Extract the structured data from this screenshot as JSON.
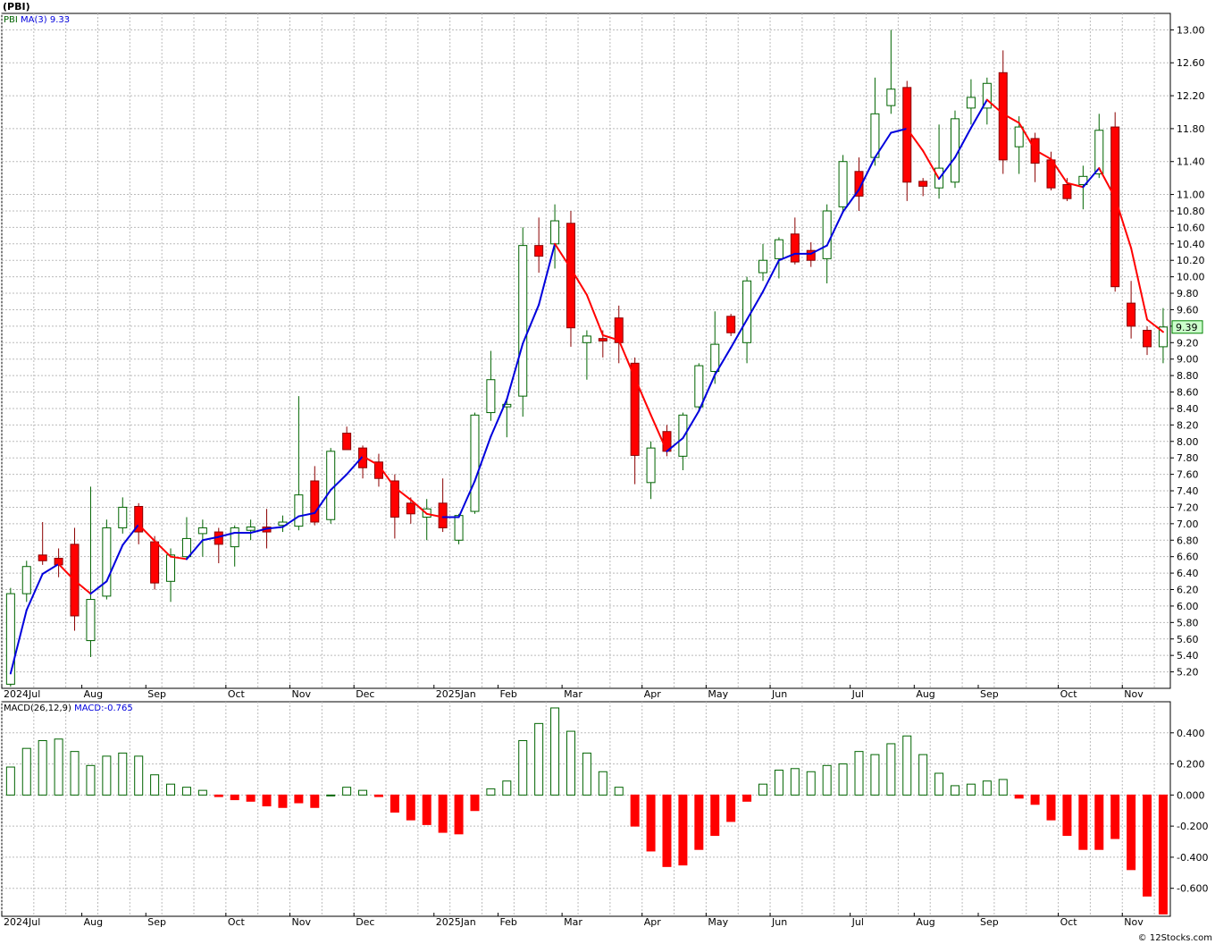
{
  "chart_title": "(PBI)",
  "watermark": "© 12Stocks.com",
  "colors": {
    "up_fill": "#ffffff",
    "up_stroke": "#006400",
    "down_fill": "#ff0000",
    "down_stroke": "#8b0000",
    "ma_up": "#0000dd",
    "ma_down": "#ff0000",
    "grid": "#bbbbbb",
    "last_price_box": "#ccffcc",
    "macd_pos_stroke": "#006400",
    "macd_neg_fill": "#ff0000",
    "ticker_label": "#006400",
    "ma_label": "#0000dd"
  },
  "chart_data": [
    {
      "type": "candlestick",
      "ticker": "PBI",
      "ma_label": "MA(3)",
      "ma_value": "9.33",
      "last_price_label": "9.39",
      "ylim": [
        5.0,
        13.2
      ],
      "y_ticks": [
        "5.20",
        "5.40",
        "5.60",
        "5.80",
        "6.00",
        "6.20",
        "6.40",
        "6.60",
        "6.80",
        "7.00",
        "7.20",
        "7.40",
        "7.60",
        "7.80",
        "8.00",
        "8.20",
        "8.40",
        "8.60",
        "8.80",
        "9.00",
        "9.20",
        "9.40",
        "9.60",
        "9.80",
        "10.00",
        "10.20",
        "10.40",
        "10.60",
        "10.80",
        "11.00",
        "11.40",
        "11.80",
        "12.20",
        "12.60",
        "13.00"
      ],
      "x_labels": [
        {
          "label": "2024Jul",
          "index": 0
        },
        {
          "label": "Aug",
          "index": 5
        },
        {
          "label": "Sep",
          "index": 9
        },
        {
          "label": "Oct",
          "index": 14
        },
        {
          "label": "Nov",
          "index": 18
        },
        {
          "label": "Dec",
          "index": 22
        },
        {
          "label": "2025Jan",
          "index": 27
        },
        {
          "label": "Feb",
          "index": 31
        },
        {
          "label": "Mar",
          "index": 35
        },
        {
          "label": "Apr",
          "index": 40
        },
        {
          "label": "May",
          "index": 44
        },
        {
          "label": "Jun",
          "index": 48
        },
        {
          "label": "Jul",
          "index": 53
        },
        {
          "label": "Aug",
          "index": 57
        },
        {
          "label": "Sep",
          "index": 61
        },
        {
          "label": "Oct",
          "index": 66
        },
        {
          "label": "Nov",
          "index": 70
        }
      ],
      "candles": [
        {
          "o": 5.05,
          "h": 6.22,
          "l": 5.02,
          "c": 6.15
        },
        {
          "o": 6.15,
          "h": 6.55,
          "l": 6.05,
          "c": 6.48
        },
        {
          "o": 6.62,
          "h": 7.02,
          "l": 6.5,
          "c": 6.55
        },
        {
          "o": 6.58,
          "h": 6.7,
          "l": 6.35,
          "c": 6.5
        },
        {
          "o": 6.75,
          "h": 6.95,
          "l": 5.7,
          "c": 5.88
        },
        {
          "o": 5.58,
          "h": 7.45,
          "l": 5.38,
          "c": 6.08
        },
        {
          "o": 6.12,
          "h": 7.05,
          "l": 6.08,
          "c": 6.95
        },
        {
          "o": 6.95,
          "h": 7.32,
          "l": 6.88,
          "c": 7.2
        },
        {
          "o": 7.21,
          "h": 7.25,
          "l": 6.75,
          "c": 6.9
        },
        {
          "o": 6.78,
          "h": 6.85,
          "l": 6.2,
          "c": 6.28
        },
        {
          "o": 6.3,
          "h": 6.7,
          "l": 6.05,
          "c": 6.62
        },
        {
          "o": 6.6,
          "h": 7.08,
          "l": 6.58,
          "c": 6.82
        },
        {
          "o": 6.88,
          "h": 7.05,
          "l": 6.6,
          "c": 6.95
        },
        {
          "o": 6.9,
          "h": 6.95,
          "l": 6.52,
          "c": 6.75
        },
        {
          "o": 6.72,
          "h": 6.98,
          "l": 6.48,
          "c": 6.95
        },
        {
          "o": 6.92,
          "h": 7.05,
          "l": 6.8,
          "c": 6.96
        },
        {
          "o": 6.96,
          "h": 7.18,
          "l": 6.7,
          "c": 6.9
        },
        {
          "o": 6.98,
          "h": 7.1,
          "l": 6.9,
          "c": 7.02
        },
        {
          "o": 6.97,
          "h": 8.55,
          "l": 6.92,
          "c": 7.35
        },
        {
          "o": 7.52,
          "h": 7.7,
          "l": 6.98,
          "c": 7.02
        },
        {
          "o": 7.05,
          "h": 7.92,
          "l": 7.0,
          "c": 7.88
        },
        {
          "o": 8.1,
          "h": 8.18,
          "l": 7.9,
          "c": 7.9
        },
        {
          "o": 7.92,
          "h": 7.95,
          "l": 7.55,
          "c": 7.68
        },
        {
          "o": 7.75,
          "h": 7.85,
          "l": 7.45,
          "c": 7.55
        },
        {
          "o": 7.52,
          "h": 7.6,
          "l": 6.82,
          "c": 7.08
        },
        {
          "o": 7.25,
          "h": 7.32,
          "l": 7.0,
          "c": 7.12
        },
        {
          "o": 7.08,
          "h": 7.3,
          "l": 6.8,
          "c": 7.18
        },
        {
          "o": 7.25,
          "h": 7.55,
          "l": 6.9,
          "c": 6.95
        },
        {
          "o": 6.8,
          "h": 7.12,
          "l": 6.75,
          "c": 7.1
        },
        {
          "o": 7.15,
          "h": 8.35,
          "l": 7.12,
          "c": 8.32
        },
        {
          "o": 8.35,
          "h": 9.1,
          "l": 8.25,
          "c": 8.75
        },
        {
          "o": 8.42,
          "h": 8.5,
          "l": 8.05,
          "c": 8.45
        },
        {
          "o": 8.55,
          "h": 10.6,
          "l": 8.3,
          "c": 10.38
        },
        {
          "o": 10.38,
          "h": 10.72,
          "l": 10.05,
          "c": 10.25
        },
        {
          "o": 10.4,
          "h": 10.88,
          "l": 10.1,
          "c": 10.68
        },
        {
          "o": 10.65,
          "h": 10.8,
          "l": 9.15,
          "c": 9.38
        },
        {
          "o": 9.2,
          "h": 9.35,
          "l": 8.75,
          "c": 9.28
        },
        {
          "o": 9.25,
          "h": 9.35,
          "l": 9.02,
          "c": 9.22
        },
        {
          "o": 9.5,
          "h": 9.65,
          "l": 8.95,
          "c": 9.2
        },
        {
          "o": 8.95,
          "h": 9.02,
          "l": 7.48,
          "c": 7.83
        },
        {
          "o": 7.5,
          "h": 8.0,
          "l": 7.3,
          "c": 7.92
        },
        {
          "o": 8.12,
          "h": 8.2,
          "l": 7.82,
          "c": 7.88
        },
        {
          "o": 7.82,
          "h": 8.35,
          "l": 7.65,
          "c": 8.32
        },
        {
          "o": 8.42,
          "h": 8.95,
          "l": 8.38,
          "c": 8.92
        },
        {
          "o": 8.85,
          "h": 9.58,
          "l": 8.7,
          "c": 9.18
        },
        {
          "o": 9.52,
          "h": 9.55,
          "l": 9.28,
          "c": 9.32
        },
        {
          "o": 9.2,
          "h": 10.0,
          "l": 8.95,
          "c": 9.95
        },
        {
          "o": 10.05,
          "h": 10.4,
          "l": 9.95,
          "c": 10.2
        },
        {
          "o": 10.22,
          "h": 10.48,
          "l": 9.98,
          "c": 10.45
        },
        {
          "o": 10.52,
          "h": 10.72,
          "l": 10.15,
          "c": 10.18
        },
        {
          "o": 10.32,
          "h": 10.42,
          "l": 10.12,
          "c": 10.2
        },
        {
          "o": 10.22,
          "h": 10.88,
          "l": 9.92,
          "c": 10.8
        },
        {
          "o": 10.85,
          "h": 11.48,
          "l": 10.8,
          "c": 11.4
        },
        {
          "o": 11.28,
          "h": 11.45,
          "l": 10.8,
          "c": 10.98
        },
        {
          "o": 11.45,
          "h": 12.42,
          "l": 11.35,
          "c": 11.98
        },
        {
          "o": 12.08,
          "h": 13.0,
          "l": 11.98,
          "c": 12.28
        },
        {
          "o": 12.3,
          "h": 12.38,
          "l": 10.92,
          "c": 11.15
        },
        {
          "o": 11.16,
          "h": 11.2,
          "l": 10.98,
          "c": 11.1
        },
        {
          "o": 11.08,
          "h": 11.85,
          "l": 10.95,
          "c": 11.32
        },
        {
          "o": 11.15,
          "h": 12.02,
          "l": 11.08,
          "c": 11.92
        },
        {
          "o": 12.05,
          "h": 12.4,
          "l": 11.85,
          "c": 12.18
        },
        {
          "o": 12.05,
          "h": 12.42,
          "l": 11.85,
          "c": 12.35
        },
        {
          "o": 12.48,
          "h": 12.75,
          "l": 11.25,
          "c": 11.42
        },
        {
          "o": 11.58,
          "h": 11.95,
          "l": 11.25,
          "c": 11.82
        },
        {
          "o": 11.68,
          "h": 11.75,
          "l": 11.15,
          "c": 11.38
        },
        {
          "o": 11.42,
          "h": 11.52,
          "l": 11.05,
          "c": 11.08
        },
        {
          "o": 11.12,
          "h": 11.2,
          "l": 10.92,
          "c": 10.95
        },
        {
          "o": 11.12,
          "h": 11.35,
          "l": 10.82,
          "c": 11.22
        },
        {
          "o": 11.25,
          "h": 11.98,
          "l": 11.2,
          "c": 11.78
        },
        {
          "o": 11.82,
          "h": 12.0,
          "l": 9.82,
          "c": 9.88
        },
        {
          "o": 9.68,
          "h": 9.95,
          "l": 9.25,
          "c": 9.4
        },
        {
          "o": 9.35,
          "h": 9.4,
          "l": 9.05,
          "c": 9.15
        },
        {
          "o": 9.15,
          "h": 9.62,
          "l": 8.95,
          "c": 9.39
        }
      ],
      "ma3": [
        5.18,
        5.95,
        6.39,
        6.51,
        6.31,
        6.15,
        6.3,
        6.74,
        6.99,
        6.79,
        6.6,
        6.57,
        6.8,
        6.84,
        6.89,
        6.89,
        6.94,
        6.96,
        7.09,
        7.13,
        7.41,
        7.6,
        7.82,
        7.71,
        7.44,
        7.29,
        7.12,
        7.08,
        7.08,
        7.52,
        8.06,
        8.51,
        9.19,
        9.66,
        10.4,
        10.1,
        9.78,
        9.29,
        9.23,
        8.77,
        8.32,
        7.88,
        8.04,
        8.37,
        8.81,
        9.14,
        9.48,
        9.82,
        10.2,
        10.28,
        10.28,
        10.38,
        10.79,
        11.06,
        11.45,
        11.75,
        11.8,
        11.53,
        11.19,
        11.45,
        11.81,
        12.15,
        11.98,
        11.87,
        11.54,
        11.43,
        11.14,
        11.09,
        11.32,
        10.96,
        10.35,
        9.48,
        9.33
      ]
    },
    {
      "type": "bar",
      "label": "MACD(26,12,9)",
      "value_label": "MACD:-0.765",
      "ylim": [
        -0.78,
        0.6
      ],
      "y_ticks": [
        "0.400",
        "0.200",
        "0.000",
        "-0.200",
        "-0.400",
        "-0.600"
      ],
      "values": [
        0.18,
        0.3,
        0.35,
        0.36,
        0.28,
        0.19,
        0.25,
        0.27,
        0.25,
        0.13,
        0.07,
        0.05,
        0.03,
        -0.01,
        -0.03,
        -0.04,
        -0.07,
        -0.08,
        -0.05,
        -0.08,
        0.0,
        0.05,
        0.03,
        -0.01,
        -0.11,
        -0.16,
        -0.19,
        -0.24,
        -0.25,
        -0.1,
        0.04,
        0.09,
        0.35,
        0.46,
        0.56,
        0.41,
        0.27,
        0.15,
        0.05,
        -0.2,
        -0.36,
        -0.46,
        -0.45,
        -0.35,
        -0.26,
        -0.17,
        -0.04,
        0.07,
        0.16,
        0.17,
        0.15,
        0.19,
        0.2,
        0.28,
        0.26,
        0.33,
        0.38,
        0.26,
        0.14,
        0.06,
        0.07,
        0.09,
        0.1,
        -0.02,
        -0.06,
        -0.16,
        -0.26,
        -0.35,
        -0.35,
        -0.28,
        -0.48,
        -0.65,
        -0.765
      ]
    }
  ]
}
